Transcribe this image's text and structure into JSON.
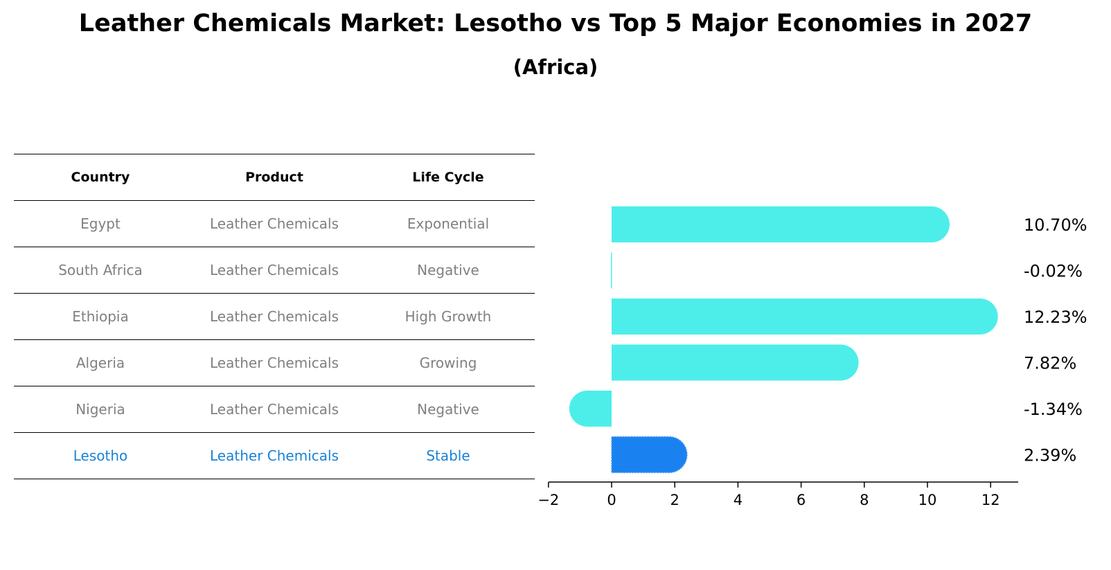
{
  "title": "Leather Chemicals Market: Lesotho vs Top 5 Major Economies in 2027",
  "subtitle": "(Africa)",
  "table": {
    "headers": [
      "Country",
      "Product",
      "Life Cycle"
    ],
    "rows": [
      [
        "Egypt",
        "Leather Chemicals",
        "Exponential"
      ],
      [
        "South Africa",
        "Leather Chemicals",
        "Negative"
      ],
      [
        "Ethiopia",
        "Leather Chemicals",
        "High Growth"
      ],
      [
        "Algeria",
        "Leather Chemicals",
        "Growing"
      ],
      [
        "Nigeria",
        "Leather Chemicals",
        "Negative"
      ],
      [
        "Lesotho",
        "Leather Chemicals",
        "Stable"
      ]
    ]
  },
  "colors": {
    "bar": "#4deeea",
    "highlight": "#1a82f0",
    "highlight_text": "#1a82d6",
    "muted_text": "#808080"
  },
  "chart_data": {
    "type": "bar",
    "orientation": "horizontal",
    "categories": [
      "Egypt",
      "South Africa",
      "Ethiopia",
      "Algeria",
      "Nigeria",
      "Lesotho"
    ],
    "values": [
      10.7,
      -0.02,
      12.23,
      7.82,
      -1.34,
      2.39
    ],
    "value_labels": [
      "10.70%",
      "-0.02%",
      "12.23%",
      "7.82%",
      "-1.34%",
      "2.39%"
    ],
    "highlight": "Lesotho",
    "xlim": [
      -2,
      13
    ],
    "xticks": [
      -2,
      0,
      2,
      4,
      6,
      8,
      10,
      12
    ],
    "xtick_labels": [
      "−2",
      "0",
      "2",
      "4",
      "6",
      "8",
      "10",
      "12"
    ],
    "xlabel": "",
    "ylabel": "",
    "grid": false
  }
}
